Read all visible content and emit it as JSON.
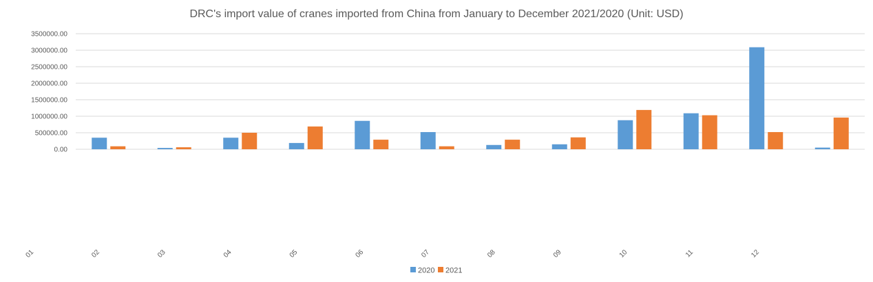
{
  "chart_data": {
    "type": "bar",
    "title": "DRC's import value of cranes imported from China from January to December 2021/2020 (Unit: USD)",
    "xlabel": "",
    "ylabel": "",
    "ylim": [
      0,
      3500000
    ],
    "yticks": [
      "0.00",
      "500000.00",
      "1000000.00",
      "1500000.00",
      "2000000.00",
      "2500000.00",
      "3000000.00",
      "3500000.00"
    ],
    "ytick_values": [
      0,
      500000,
      1000000,
      1500000,
      2000000,
      2500000,
      3000000,
      3500000
    ],
    "categories": [
      "01",
      "02",
      "03",
      "04",
      "05",
      "06",
      "07",
      "08",
      "09",
      "10",
      "11",
      "12"
    ],
    "series": [
      {
        "name": "2020",
        "color": "#5b9bd5",
        "values": [
          350000,
          40000,
          350000,
          190000,
          860000,
          520000,
          130000,
          150000,
          880000,
          1090000,
          3090000,
          50000
        ]
      },
      {
        "name": "2021",
        "color": "#ed7d31",
        "values": [
          90000,
          60000,
          500000,
          690000,
          290000,
          90000,
          290000,
          360000,
          1190000,
          1030000,
          520000,
          960000
        ]
      }
    ],
    "grid": true,
    "legend": "bottom-center"
  }
}
